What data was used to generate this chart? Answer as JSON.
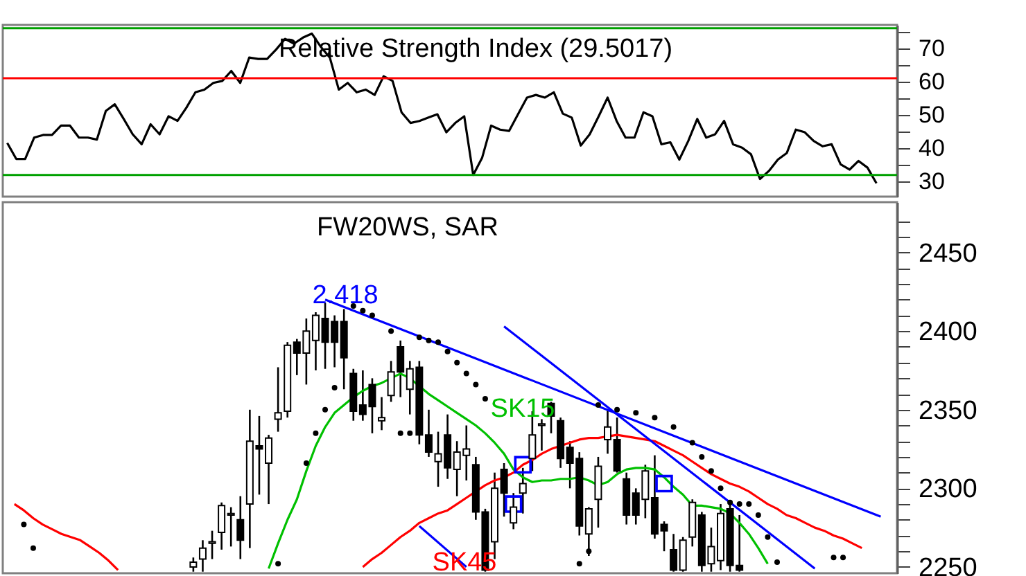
{
  "chart_data": [
    {
      "type": "line",
      "title": "Relative Strength Index (29.5017)",
      "categories": [
        null,
        null,
        null,
        null,
        null,
        null,
        null,
        null,
        null,
        null,
        null,
        null,
        null,
        null,
        null,
        null,
        null,
        null,
        null,
        null,
        null,
        null,
        null,
        null,
        null,
        null,
        null,
        null,
        null,
        null,
        null,
        null,
        null,
        null,
        null,
        null,
        null,
        null,
        null,
        null,
        null,
        null,
        null,
        null,
        null,
        null,
        null,
        null,
        null,
        null,
        null,
        null,
        null,
        null,
        null,
        null,
        null,
        null,
        null,
        null,
        null,
        null,
        null,
        null,
        null,
        null,
        null,
        null,
        null,
        null,
        null,
        null,
        null,
        null,
        null,
        null,
        null,
        null,
        null,
        null,
        null,
        null,
        null,
        null,
        null,
        null,
        null,
        null,
        null,
        null,
        null,
        null,
        null,
        null,
        null,
        null,
        null,
        null
      ],
      "series": [
        {
          "color": "#000000",
          "values": [
            41.6,
            36.8,
            36.8,
            43.2,
            44,
            44,
            46.8,
            46.8,
            43.2,
            43.2,
            42.6,
            51.2,
            53.2,
            48.8,
            44.2,
            41.2,
            47.2,
            44.2,
            49.6,
            48.2,
            52.2,
            56.8,
            57.6,
            59.6,
            60.2,
            63.2,
            59.6,
            67.2,
            66.8,
            66.8,
            69.6,
            72.8,
            71.4,
            73.2,
            74.4,
            70.4,
            67.2,
            57.6,
            59.6,
            56.8,
            57.6,
            56,
            61.6,
            60.2,
            50.8,
            47.6,
            48.2,
            49.2,
            50.2,
            44.8,
            47.6,
            49.6,
            32,
            37.2,
            46.8,
            45.6,
            45.2,
            50.2,
            55.2,
            56,
            55.2,
            56.8,
            50.4,
            49.2,
            40.8,
            44.2,
            49.6,
            55.2,
            48.2,
            43.2,
            43.2,
            50.8,
            49.6,
            41.2,
            41.8,
            36.6,
            42.2,
            48.8,
            43.2,
            44.2,
            48.2,
            41.2,
            40.2,
            38.2,
            30.8,
            33.2,
            36.6,
            38.6,
            45.6,
            44.8,
            42.2,
            40.6,
            41.2,
            35.2,
            33.6,
            36.2,
            34.2,
            29.5
          ]
        }
      ],
      "ylim": [
        25.5,
        77
      ],
      "yticks": [
        30,
        {
          "value": 35,
          "label": null
        },
        40,
        {
          "value": 45,
          "label": null
        },
        50,
        {
          "value": 55,
          "label": null
        },
        60,
        {
          "value": 65,
          "label": null
        },
        70,
        {
          "value": 75,
          "label": null
        }
      ],
      "ref_lines": [
        {
          "axis": "y",
          "value": 76,
          "color": "#00a000"
        },
        {
          "axis": "y",
          "value": 61,
          "color": "#ff0000"
        },
        {
          "axis": "y",
          "value": 32,
          "color": "#00a000"
        }
      ],
      "tick_labels": "y",
      "grid": false
    },
    {
      "type": "candlestick",
      "title": "FW20WS, SAR",
      "categories": [
        null,
        null,
        null,
        null,
        null,
        null,
        null,
        null,
        null,
        null,
        null,
        null,
        null,
        null,
        null,
        null,
        null,
        null,
        null,
        null,
        null,
        null,
        null,
        null,
        null,
        null,
        null,
        null,
        null,
        null,
        null,
        null,
        null,
        null,
        null,
        null,
        null,
        null,
        null,
        null,
        null,
        null,
        null,
        null,
        null,
        null,
        null,
        null,
        null,
        null,
        null,
        null,
        null,
        null,
        null,
        null,
        null,
        null,
        null,
        null,
        null,
        null,
        null,
        null,
        null,
        null,
        null,
        null,
        null,
        null,
        null,
        null,
        null,
        null,
        null,
        null,
        null,
        null,
        null,
        null,
        null,
        null,
        null,
        null,
        null,
        null,
        null,
        null,
        null,
        null,
        null,
        null,
        null
      ],
      "ohlc": [
        null,
        null,
        null,
        null,
        null,
        null,
        null,
        null,
        null,
        null,
        null,
        null,
        null,
        null,
        null,
        null,
        null,
        null,
        null,
        [
          2250,
          2256,
          2247,
          2253
        ],
        [
          2255,
          2267,
          2247,
          2262
        ],
        [
          2265,
          2273,
          2255,
          2266
        ],
        [
          2272,
          2291,
          2261,
          2289
        ],
        [
          2283,
          2288,
          2263,
          2284
        ],
        [
          2280,
          2295,
          2255,
          2267
        ],
        [
          2290,
          2350,
          2262,
          2330
        ],
        [
          2327,
          2346,
          2296,
          2325
        ],
        [
          2316,
          2334,
          2290,
          2332
        ],
        [
          2344,
          2377,
          2336,
          2348
        ],
        [
          2349,
          2393,
          2345,
          2391
        ],
        [
          2393,
          2395,
          2372,
          2386
        ],
        [
          2386,
          2408,
          2366,
          2400
        ],
        [
          2394,
          2412,
          2375,
          2410
        ],
        [
          2408,
          2418,
          2376,
          2393
        ],
        [
          2406,
          2410,
          2377,
          2393
        ],
        [
          2406,
          2414,
          2363,
          2383
        ],
        [
          2373,
          2376,
          2343,
          2349
        ],
        [
          2353,
          2375,
          2343,
          2347
        ],
        [
          2366,
          2370,
          2335,
          2352
        ],
        [
          2343,
          2358,
          2337,
          2345
        ],
        [
          2359,
          2381,
          2355,
          2374
        ],
        [
          2390,
          2394,
          2358,
          2374
        ],
        [
          2363,
          2381,
          2347,
          2376
        ],
        [
          2377,
          2381,
          2328,
          2334
        ],
        [
          2334,
          2350,
          2320,
          2323
        ],
        [
          2317,
          2336,
          2301,
          2322
        ],
        [
          2334,
          2347,
          2306,
          2313
        ],
        [
          2312,
          2330,
          2295,
          2323
        ],
        [
          2321,
          2340,
          2305,
          2325
        ],
        [
          2315,
          2320,
          2280,
          2285
        ],
        [
          2285,
          2287,
          2247,
          2248
        ],
        [
          2266,
          2310,
          2255,
          2300
        ],
        [
          2312,
          2316,
          2282,
          2297
        ],
        [
          2278,
          2297,
          2274,
          2288
        ],
        [
          2297,
          2313,
          2284,
          2303
        ],
        [
          2319,
          2349,
          2311,
          2334
        ],
        [
          2340,
          2344,
          2324,
          2341
        ],
        [
          2354,
          2355,
          2335,
          2346
        ],
        [
          2343,
          2345,
          2313,
          2319
        ],
        [
          2326,
          2330,
          2300,
          2316
        ],
        [
          2319,
          2323,
          2270,
          2276
        ],
        [
          2271,
          2288,
          2257,
          2287
        ],
        [
          2293,
          2320,
          2275,
          2314
        ],
        [
          2331,
          2350,
          2322,
          2339
        ],
        [
          2331,
          2345,
          2310,
          2311
        ],
        [
          2306,
          2310,
          2277,
          2283
        ],
        [
          2297,
          2300,
          2277,
          2283
        ],
        [
          2293,
          2315,
          2281,
          2311
        ],
        [
          2294,
          2321,
          2268,
          2271
        ],
        [
          2277,
          2279,
          2260,
          2273
        ],
        [
          2261,
          2271,
          2247,
          2248
        ],
        [
          2248,
          2269,
          2247,
          2267
        ],
        [
          2269,
          2293,
          2263,
          2291
        ],
        [
          2283,
          2285,
          2247,
          2251
        ],
        [
          2252,
          2275,
          2247,
          2263
        ],
        [
          2254,
          2290,
          2248,
          2284
        ],
        [
          2287,
          2290,
          2247,
          2251
        ],
        [
          2251,
          2283,
          2247,
          2248
        ],
        null,
        null,
        null,
        null,
        null,
        null,
        null,
        null,
        null,
        null,
        null,
        null,
        null,
        null,
        null
      ],
      "series": [
        {
          "type": "line",
          "color": "#00c000",
          "values": [
            null,
            null,
            null,
            null,
            null,
            null,
            null,
            null,
            null,
            null,
            null,
            null,
            null,
            null,
            null,
            null,
            null,
            null,
            null,
            null,
            null,
            null,
            null,
            null,
            null,
            null,
            null,
            2249,
            2265,
            2280,
            2293,
            2311,
            2327,
            2339,
            2348,
            2353,
            2358,
            2362,
            2365,
            2367,
            2370,
            2373,
            2370,
            2365,
            2360,
            2356,
            2352,
            2348,
            2344,
            2340,
            2335,
            2329,
            2322,
            2312,
            2307,
            2304,
            2305,
            2305,
            2306,
            2306,
            2307,
            2305,
            2302,
            2304,
            2309,
            2312,
            2313,
            2313,
            2312,
            2307,
            2301,
            2296,
            2289,
            2289,
            2288,
            2287,
            2284,
            2278,
            2271,
            2262,
            2252,
            null,
            null,
            null,
            null,
            null,
            null,
            null,
            null,
            null,
            null,
            null,
            null
          ]
        },
        {
          "type": "line",
          "color": "#ff0000",
          "values": [
            2290,
            2286,
            2281,
            2277,
            2274,
            2271,
            2269,
            2267,
            2263,
            2259,
            2254,
            2248,
            null,
            null,
            null,
            null,
            null,
            null,
            null,
            null,
            null,
            null,
            null,
            null,
            null,
            null,
            null,
            null,
            null,
            null,
            null,
            null,
            null,
            null,
            null,
            null,
            null,
            null,
            null,
            null,
            null,
            null,
            null,
            null,
            null,
            null,
            null,
            null,
            null,
            null,
            null,
            null,
            null,
            null,
            null,
            null,
            null,
            null,
            null,
            null,
            null,
            null,
            null,
            null,
            null,
            null,
            null,
            null,
            null,
            null,
            null,
            null,
            null,
            null,
            null,
            null,
            null,
            null,
            null,
            null,
            null,
            null,
            null,
            null,
            null,
            null,
            null,
            null,
            null,
            null,
            null,
            null,
            null
          ]
        },
        {
          "type": "line",
          "color": "#ff0000",
          "values": [
            null,
            null,
            null,
            null,
            null,
            null,
            null,
            null,
            null,
            null,
            null,
            null,
            null,
            null,
            null,
            null,
            null,
            null,
            null,
            null,
            null,
            null,
            null,
            null,
            null,
            null,
            null,
            null,
            null,
            null,
            null,
            null,
            null,
            null,
            null,
            null,
            null,
            2250,
            2255,
            2259,
            2264,
            2269,
            2273,
            2278,
            2281,
            2284,
            2286,
            2290,
            2294,
            2298,
            2302,
            2305,
            2307,
            2310,
            2315,
            2318,
            2322,
            2325,
            2327,
            2329,
            2331,
            2332,
            2332,
            2333,
            2334,
            2333,
            2332,
            2331,
            2330,
            2327,
            2324,
            2321,
            2317,
            2313,
            2309,
            2306,
            2303,
            2301,
            2298,
            2294,
            2290,
            2287,
            2283,
            2281,
            2278,
            2275,
            2273,
            2270,
            2268,
            2265,
            2262,
            null,
            null
          ]
        },
        {
          "type": "line",
          "color": "#0000ff",
          "values": [
            null,
            null,
            null,
            null,
            null,
            null,
            null,
            null,
            null,
            null,
            null,
            null,
            null,
            null,
            null,
            null,
            null,
            null,
            null,
            null,
            null,
            null,
            null,
            null,
            null,
            null,
            null,
            null,
            null,
            null,
            null,
            null,
            null,
            2420,
            null,
            null,
            null,
            null,
            null,
            null,
            null,
            null,
            null,
            null,
            null,
            null,
            null,
            null,
            null,
            null,
            null,
            null,
            null,
            null,
            null,
            null,
            null,
            null,
            null,
            null,
            null,
            null,
            null,
            null,
            null,
            null,
            null,
            null,
            null,
            null,
            null,
            null,
            null,
            null,
            null,
            null,
            null,
            null,
            null,
            null,
            null,
            null,
            null,
            null,
            null,
            null,
            null,
            null,
            null,
            null,
            null,
            null,
            2282
          ]
        },
        {
          "type": "line",
          "color": "#0000ff",
          "values": [
            null,
            null,
            null,
            null,
            null,
            null,
            null,
            null,
            null,
            null,
            null,
            null,
            null,
            null,
            null,
            null,
            null,
            null,
            null,
            null,
            null,
            null,
            null,
            null,
            null,
            null,
            null,
            null,
            null,
            null,
            null,
            null,
            null,
            null,
            null,
            null,
            null,
            null,
            null,
            null,
            null,
            null,
            null,
            null,
            null,
            null,
            null,
            null,
            null,
            null,
            null,
            null,
            2403,
            null,
            null,
            null,
            null,
            null,
            null,
            null,
            null,
            null,
            null,
            null,
            null,
            null,
            null,
            null,
            null,
            null,
            null,
            null,
            null,
            null,
            null,
            null,
            null,
            null,
            null,
            null,
            null,
            null,
            null,
            null,
            null,
            2249,
            null,
            null,
            null,
            null,
            null,
            null,
            null
          ]
        },
        {
          "type": "line",
          "color": "#0000ff",
          "values": [
            null,
            null,
            null,
            null,
            null,
            null,
            null,
            null,
            null,
            null,
            null,
            null,
            null,
            null,
            null,
            null,
            null,
            null,
            null,
            null,
            null,
            null,
            null,
            null,
            null,
            null,
            null,
            null,
            null,
            null,
            null,
            null,
            null,
            null,
            null,
            null,
            null,
            null,
            null,
            null,
            null,
            null,
            null,
            2276,
            null,
            null,
            null,
            null,
            2250,
            null,
            null,
            null,
            null,
            null,
            null,
            null,
            null,
            null,
            null,
            null,
            null,
            null,
            null,
            null,
            null,
            null,
            null,
            null,
            null,
            null,
            null,
            null,
            null,
            null,
            null,
            null,
            null,
            null,
            null,
            null,
            null,
            null,
            null,
            null,
            null,
            null,
            null,
            null,
            null,
            null,
            null,
            null,
            null
          ]
        },
        {
          "type": "scatter",
          "marker": "circle",
          "color": "#000000",
          "values": [
            null,
            2277,
            2262,
            null,
            null,
            null,
            null,
            null,
            null,
            null,
            null,
            null,
            null,
            null,
            null,
            null,
            null,
            null,
            null,
            null,
            null,
            null,
            null,
            null,
            null,
            null,
            null,
            null,
            2252,
            null,
            null,
            2316,
            2335,
            2350,
            2364,
            null,
            2416,
            2413,
            2410,
            null,
            2400,
            2335,
            2335,
            2396,
            2394,
            2393,
            2387,
            2380,
            2373,
            2366,
            2357,
            null,
            null,
            null,
            null,
            null,
            null,
            null,
            null,
            null,
            2252,
            2260,
            2353,
            null,
            2350,
            null,
            2348,
            null,
            2345,
            null,
            2339,
            null,
            2329,
            2320,
            2311,
            2300,
            2291,
            2290,
            2290,
            2283,
            2269,
            2253,
            null,
            null,
            null,
            null,
            null,
            2256,
            2256,
            null,
            null,
            null,
            null
          ]
        },
        {
          "type": "scatter",
          "marker": "square",
          "color": "#0000ff",
          "values": [
            null,
            null,
            null,
            null,
            null,
            null,
            null,
            null,
            null,
            null,
            null,
            null,
            null,
            null,
            null,
            null,
            null,
            null,
            null,
            null,
            null,
            null,
            null,
            null,
            null,
            null,
            null,
            null,
            null,
            null,
            null,
            null,
            null,
            null,
            null,
            null,
            null,
            null,
            null,
            null,
            null,
            null,
            null,
            null,
            null,
            null,
            null,
            null,
            null,
            null,
            null,
            null,
            null,
            2290,
            2315,
            null,
            null,
            null,
            null,
            null,
            null,
            null,
            null,
            null,
            null,
            null,
            null,
            null,
            null,
            2303,
            null,
            null,
            null,
            null,
            null,
            null,
            null,
            null,
            null,
            null,
            null,
            null,
            null,
            null,
            null,
            null,
            null,
            null,
            null,
            null,
            null,
            null,
            null
          ]
        }
      ],
      "annotations": [
        "2.418",
        "SK15",
        "SK45"
      ],
      "ylim": [
        2246,
        2482
      ],
      "yticks": [
        2250,
        {
          "value": 2260,
          "label": null
        },
        {
          "value": 2270,
          "label": null
        },
        {
          "value": 2280,
          "label": null
        },
        {
          "value": 2290,
          "label": null
        },
        2300,
        {
          "value": 2310,
          "label": null
        },
        {
          "value": 2320,
          "label": null
        },
        {
          "value": 2330,
          "label": null
        },
        {
          "value": 2340,
          "label": null
        },
        2350,
        {
          "value": 2360,
          "label": null
        },
        {
          "value": 2370,
          "label": null
        },
        {
          "value": 2380,
          "label": null
        },
        {
          "value": 2390,
          "label": null
        },
        2400,
        {
          "value": 2410,
          "label": null
        },
        {
          "value": 2420,
          "label": null
        },
        {
          "value": 2430,
          "label": null
        },
        {
          "value": 2440,
          "label": null
        },
        2450,
        {
          "value": 2460,
          "label": null
        },
        {
          "value": 2470,
          "label": null
        }
      ],
      "tick_labels": "y",
      "grid": false
    }
  ]
}
